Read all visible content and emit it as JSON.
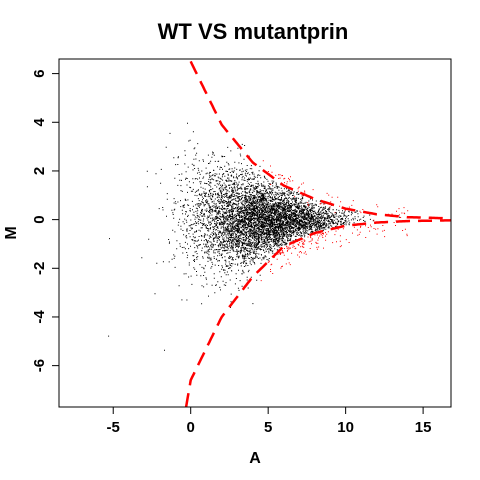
{
  "chart_data": {
    "type": "scatter",
    "title": "WT VS mutantprin",
    "xlabel": "A",
    "ylabel": "M",
    "xlim": [
      -8.5,
      16.8
    ],
    "ylim": [
      -7.7,
      6.6
    ],
    "x_ticks": [
      -5,
      0,
      5,
      10,
      15
    ],
    "x_tick_labels": [
      "-5",
      "0",
      "5",
      "10",
      "15"
    ],
    "y_ticks": [
      -6,
      -4,
      -2,
      0,
      2,
      4,
      6
    ],
    "y_tick_labels": [
      "-6",
      "-4",
      "-2",
      "0",
      "2",
      "4",
      "6"
    ],
    "grid": false,
    "legend": "none",
    "point_count": 6000,
    "series": [
      {
        "role": "non-significant points",
        "color": "#000000",
        "approx_x_range": [
          -7.5,
          10
        ],
        "dense_center": [
          4.5,
          0
        ],
        "max_abs_y": 6
      },
      {
        "role": "significant points (outside cutoff curves)",
        "color": "#ff0000",
        "approx_x_range": [
          4.5,
          14
        ]
      },
      {
        "role": "cutoff curves (dashed)",
        "color": "#ff0000",
        "style": "dashed",
        "upper_curve_points": [
          [
            0,
            6.5
          ],
          [
            2,
            3.9
          ],
          [
            4,
            2.35
          ],
          [
            6,
            1.4
          ],
          [
            8,
            0.85
          ],
          [
            10,
            0.45
          ],
          [
            12,
            0.22
          ],
          [
            14,
            0.1
          ],
          [
            16.8,
            0.05
          ]
        ],
        "lower_curve_points": [
          [
            -0.3,
            -7.7
          ],
          [
            0,
            -6.6
          ],
          [
            2,
            -4.0
          ],
          [
            4,
            -2.35
          ],
          [
            6,
            -1.1
          ],
          [
            8,
            -0.55
          ],
          [
            10,
            -0.25
          ],
          [
            12,
            -0.12
          ],
          [
            14,
            -0.06
          ],
          [
            16.8,
            -0.03
          ]
        ]
      }
    ]
  }
}
